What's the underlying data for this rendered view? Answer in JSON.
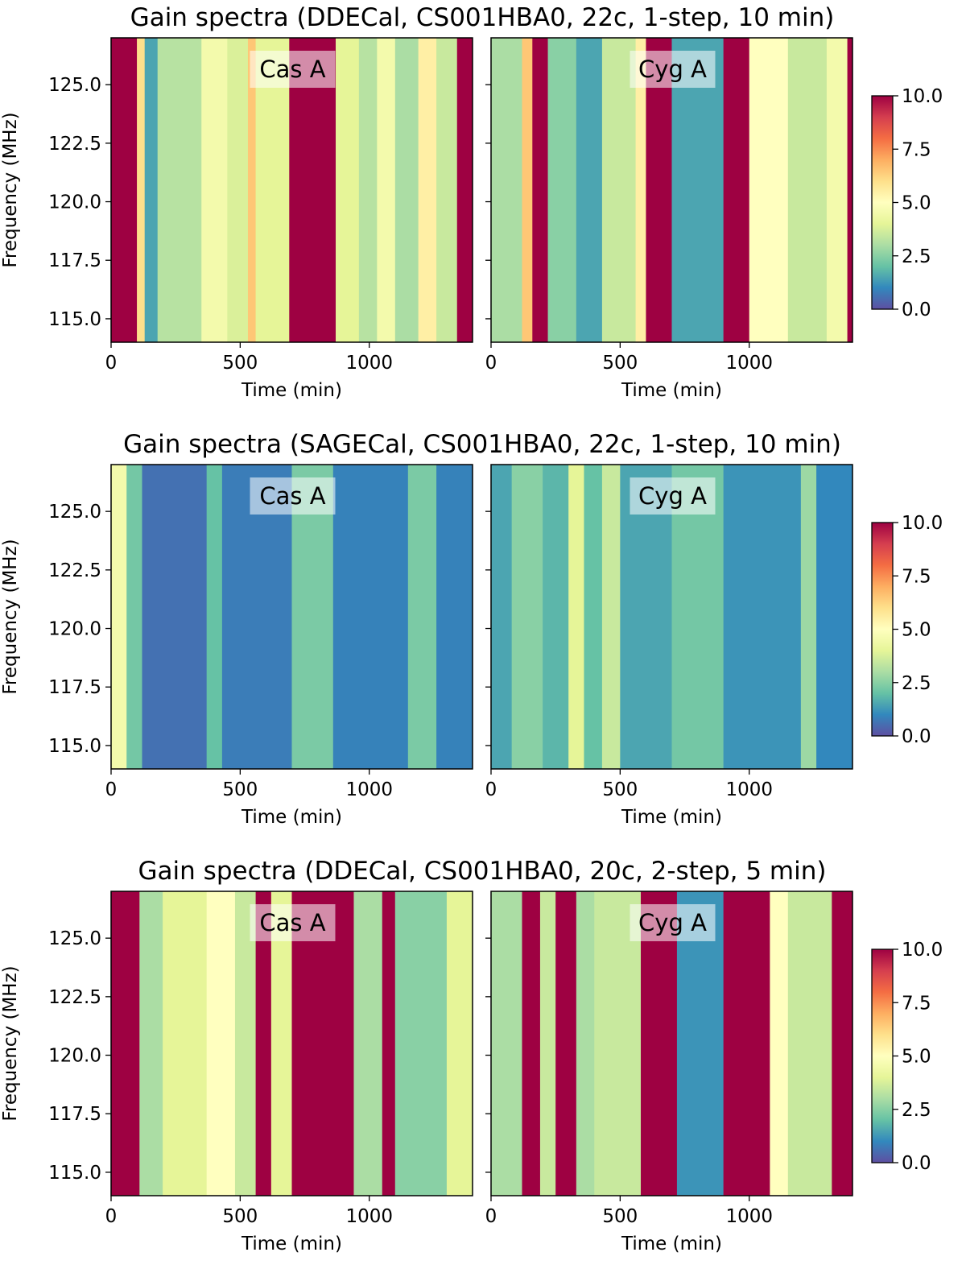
{
  "chart_data": [
    {
      "type": "heatmap",
      "title": "Gain spectra (DDECal, CS001HBA0, 22c, 1-step, 10 min)",
      "ylabel": "Frequency (MHz)",
      "xlabel": "Time (min)",
      "xlim": [
        0,
        1400
      ],
      "ylim": [
        114.0,
        127.0
      ],
      "xticks": [
        "0",
        "500",
        "1000"
      ],
      "yticks": [
        "115.0",
        "117.5",
        "120.0",
        "122.5",
        "125.0"
      ],
      "colorbar": {
        "min": 0.0,
        "max": 10.0,
        "ticks": [
          "0.0",
          "2.5",
          "5.0",
          "7.5",
          "10.0"
        ],
        "colormap": "Spectral_r"
      },
      "panels": [
        {
          "label": "Cas A",
          "bands": [
            {
              "t0": 0,
              "t1": 100,
              "v": 10
            },
            {
              "t0": 100,
              "t1": 130,
              "v": 6
            },
            {
              "t0": 130,
              "t1": 180,
              "v": 1.5
            },
            {
              "t0": 180,
              "t1": 350,
              "v": 3.2
            },
            {
              "t0": 350,
              "t1": 450,
              "v": 4.5
            },
            {
              "t0": 450,
              "t1": 530,
              "v": 3.8
            },
            {
              "t0": 530,
              "t1": 560,
              "v": 6.5
            },
            {
              "t0": 560,
              "t1": 690,
              "v": 4.0
            },
            {
              "t0": 690,
              "t1": 870,
              "v": 10
            },
            {
              "t0": 870,
              "t1": 960,
              "v": 4.0
            },
            {
              "t0": 960,
              "t1": 1030,
              "v": 3.2
            },
            {
              "t0": 1030,
              "t1": 1100,
              "v": 4.5
            },
            {
              "t0": 1100,
              "t1": 1190,
              "v": 3.0
            },
            {
              "t0": 1190,
              "t1": 1260,
              "v": 5.5
            },
            {
              "t0": 1260,
              "t1": 1340,
              "v": 3.5
            },
            {
              "t0": 1340,
              "t1": 1400,
              "v": 10
            }
          ]
        },
        {
          "label": "Cyg A",
          "bands": [
            {
              "t0": 0,
              "t1": 120,
              "v": 3.0
            },
            {
              "t0": 120,
              "t1": 160,
              "v": 6.5
            },
            {
              "t0": 160,
              "t1": 220,
              "v": 10
            },
            {
              "t0": 220,
              "t1": 330,
              "v": 2.5
            },
            {
              "t0": 330,
              "t1": 430,
              "v": 1.5
            },
            {
              "t0": 430,
              "t1": 560,
              "v": 3.5
            },
            {
              "t0": 560,
              "t1": 600,
              "v": 5.5
            },
            {
              "t0": 600,
              "t1": 700,
              "v": 10
            },
            {
              "t0": 700,
              "t1": 900,
              "v": 1.5
            },
            {
              "t0": 900,
              "t1": 1000,
              "v": 10
            },
            {
              "t0": 1000,
              "t1": 1150,
              "v": 5.0
            },
            {
              "t0": 1150,
              "t1": 1300,
              "v": 3.5
            },
            {
              "t0": 1300,
              "t1": 1380,
              "v": 4.5
            },
            {
              "t0": 1380,
              "t1": 1400,
              "v": 10
            }
          ]
        }
      ]
    },
    {
      "type": "heatmap",
      "title": "Gain spectra (SAGECal, CS001HBA0, 22c, 1-step, 10 min)",
      "ylabel": "Frequency (MHz)",
      "xlabel": "Time (min)",
      "xlim": [
        0,
        1400
      ],
      "ylim": [
        114.0,
        127.0
      ],
      "xticks": [
        "0",
        "500",
        "1000"
      ],
      "yticks": [
        "115.0",
        "117.5",
        "120.0",
        "122.5",
        "125.0"
      ],
      "colorbar": {
        "min": 0.0,
        "max": 10.0,
        "ticks": [
          "0.0",
          "2.5",
          "5.0",
          "7.5",
          "10.0"
        ],
        "colormap": "Spectral_r"
      },
      "panels": [
        {
          "label": "Cas A",
          "bands": [
            {
              "t0": 0,
              "t1": 60,
              "v": 4.5
            },
            {
              "t0": 60,
              "t1": 120,
              "v": 2.2
            },
            {
              "t0": 120,
              "t1": 370,
              "v": 0.6
            },
            {
              "t0": 370,
              "t1": 430,
              "v": 2.0
            },
            {
              "t0": 430,
              "t1": 700,
              "v": 0.8
            },
            {
              "t0": 700,
              "t1": 860,
              "v": 2.3
            },
            {
              "t0": 860,
              "t1": 1150,
              "v": 0.9
            },
            {
              "t0": 1150,
              "t1": 1260,
              "v": 2.3
            },
            {
              "t0": 1260,
              "t1": 1400,
              "v": 0.9
            }
          ]
        },
        {
          "label": "Cyg A",
          "bands": [
            {
              "t0": 0,
              "t1": 80,
              "v": 1.5
            },
            {
              "t0": 80,
              "t1": 200,
              "v": 2.5
            },
            {
              "t0": 200,
              "t1": 300,
              "v": 1.8
            },
            {
              "t0": 300,
              "t1": 360,
              "v": 4.0
            },
            {
              "t0": 360,
              "t1": 430,
              "v": 2.0
            },
            {
              "t0": 430,
              "t1": 500,
              "v": 3.5
            },
            {
              "t0": 500,
              "t1": 700,
              "v": 1.5
            },
            {
              "t0": 700,
              "t1": 900,
              "v": 2.2
            },
            {
              "t0": 900,
              "t1": 1200,
              "v": 1.2
            },
            {
              "t0": 1200,
              "t1": 1260,
              "v": 2.8
            },
            {
              "t0": 1260,
              "t1": 1400,
              "v": 1.0
            }
          ]
        }
      ]
    },
    {
      "type": "heatmap",
      "title": "Gain spectra (DDECal, CS001HBA0, 20c, 2-step, 5 min)",
      "ylabel": "Frequency (MHz)",
      "xlabel": "Time (min)",
      "xlim": [
        0,
        1400
      ],
      "ylim": [
        114.0,
        127.0
      ],
      "xticks": [
        "0",
        "500",
        "1000"
      ],
      "yticks": [
        "115.0",
        "117.5",
        "120.0",
        "122.5",
        "125.0"
      ],
      "colorbar": {
        "min": 0.0,
        "max": 10.0,
        "ticks": [
          "0.0",
          "2.5",
          "5.0",
          "7.5",
          "10.0"
        ],
        "colormap": "Spectral_r"
      },
      "panels": [
        {
          "label": "Cas A",
          "bands": [
            {
              "t0": 0,
              "t1": 110,
              "v": 10
            },
            {
              "t0": 110,
              "t1": 200,
              "v": 3.0
            },
            {
              "t0": 200,
              "t1": 370,
              "v": 4.0
            },
            {
              "t0": 370,
              "t1": 480,
              "v": 5.0
            },
            {
              "t0": 480,
              "t1": 560,
              "v": 3.5
            },
            {
              "t0": 560,
              "t1": 620,
              "v": 10
            },
            {
              "t0": 620,
              "t1": 700,
              "v": 4.0
            },
            {
              "t0": 700,
              "t1": 940,
              "v": 10
            },
            {
              "t0": 940,
              "t1": 1050,
              "v": 3.0
            },
            {
              "t0": 1050,
              "t1": 1100,
              "v": 10
            },
            {
              "t0": 1100,
              "t1": 1300,
              "v": 2.5
            },
            {
              "t0": 1300,
              "t1": 1400,
              "v": 4.0
            }
          ]
        },
        {
          "label": "Cyg A",
          "bands": [
            {
              "t0": 0,
              "t1": 120,
              "v": 3.0
            },
            {
              "t0": 120,
              "t1": 190,
              "v": 10
            },
            {
              "t0": 190,
              "t1": 250,
              "v": 3.5
            },
            {
              "t0": 250,
              "t1": 330,
              "v": 10
            },
            {
              "t0": 330,
              "t1": 400,
              "v": 3.0
            },
            {
              "t0": 400,
              "t1": 580,
              "v": 3.5
            },
            {
              "t0": 580,
              "t1": 720,
              "v": 10
            },
            {
              "t0": 720,
              "t1": 900,
              "v": 1.2
            },
            {
              "t0": 900,
              "t1": 1080,
              "v": 10
            },
            {
              "t0": 1080,
              "t1": 1150,
              "v": 5.0
            },
            {
              "t0": 1150,
              "t1": 1320,
              "v": 3.5
            },
            {
              "t0": 1320,
              "t1": 1400,
              "v": 10
            }
          ]
        }
      ]
    }
  ]
}
